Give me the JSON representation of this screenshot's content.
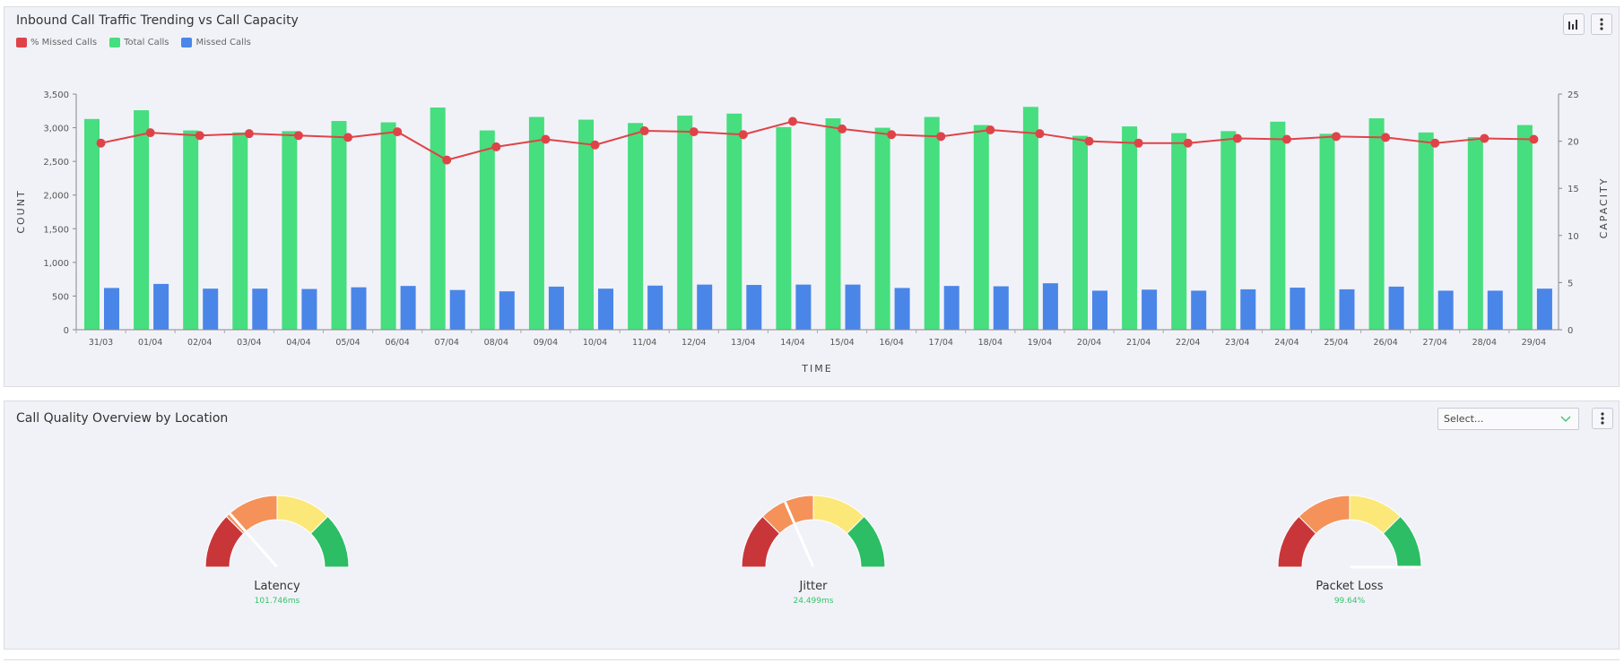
{
  "traffic_panel": {
    "title": "Inbound Call Traffic Trending vs Call Capacity",
    "chart_type_icon": "bar-chart-icon",
    "menu_icon": "vertical-dots-icon"
  },
  "quality_panel": {
    "title": "Call Quality Overview by Location",
    "select": {
      "value": "Select..."
    },
    "menu_icon": "vertical-dots-icon"
  },
  "colors": {
    "missed_pct": "#e04347",
    "total": "#46de7e",
    "missed": "#4a86e8",
    "gauge_red": "#c9363a",
    "gauge_orange": "#f4925a",
    "gauge_yellow": "#fbe879",
    "gauge_green": "#2dbd64",
    "value_green": "#35c46a"
  },
  "chart_data": {
    "type": "bar",
    "xlabel": "TIME",
    "ylabel": "COUNT",
    "y2label": "CAPACITY",
    "ylim": [
      0,
      3500
    ],
    "y2lim": [
      0,
      25
    ],
    "yticks": [
      "0",
      "500",
      "1,000",
      "1,500",
      "2,000",
      "2,500",
      "3,000",
      "3,500"
    ],
    "y2ticks": [
      "0",
      "5",
      "10",
      "15",
      "20",
      "25"
    ],
    "legend_position": "top-left",
    "categories": [
      "31/03",
      "01/04",
      "02/04",
      "03/04",
      "04/04",
      "05/04",
      "06/04",
      "07/04",
      "08/04",
      "09/04",
      "10/04",
      "11/04",
      "12/04",
      "13/04",
      "14/04",
      "15/04",
      "16/04",
      "17/04",
      "18/04",
      "19/04",
      "20/04",
      "21/04",
      "22/04",
      "23/04",
      "24/04",
      "25/04",
      "26/04",
      "27/04",
      "28/04",
      "29/04"
    ],
    "series": [
      {
        "name": "% Missed Calls",
        "type": "line",
        "axis": "right",
        "values": [
          19.8,
          20.9,
          20.6,
          20.8,
          20.6,
          20.4,
          21.0,
          18.0,
          19.4,
          20.2,
          19.6,
          21.1,
          21.0,
          20.7,
          22.1,
          21.3,
          20.7,
          20.5,
          21.2,
          20.8,
          20.0,
          19.8,
          19.8,
          20.3,
          20.2,
          20.5,
          20.4,
          19.8,
          20.3,
          20.2
        ]
      },
      {
        "name": "Total Calls",
        "type": "bar",
        "axis": "left",
        "values": [
          3130,
          3260,
          2960,
          2930,
          2950,
          3100,
          3080,
          3300,
          2960,
          3160,
          3120,
          3070,
          3180,
          3210,
          3010,
          3140,
          3000,
          3160,
          3040,
          3310,
          2880,
          3020,
          2920,
          2950,
          3090,
          2910,
          3140,
          2930,
          2860,
          3040
        ]
      },
      {
        "name": "Missed Calls",
        "type": "bar",
        "axis": "left",
        "values": [
          620,
          680,
          610,
          610,
          605,
          630,
          650,
          590,
          570,
          640,
          610,
          655,
          670,
          665,
          670,
          670,
          620,
          650,
          645,
          690,
          580,
          595,
          580,
          600,
          625,
          600,
          640,
          580,
          580,
          610
        ]
      }
    ]
  },
  "gauges": [
    {
      "title": "Latency",
      "value": "101.746ms",
      "level": 0.27
    },
    {
      "title": "Jitter",
      "value": "24.499ms",
      "level": 0.37
    },
    {
      "title": "Packet Loss",
      "value": "99.64%",
      "level": 1.0
    }
  ]
}
